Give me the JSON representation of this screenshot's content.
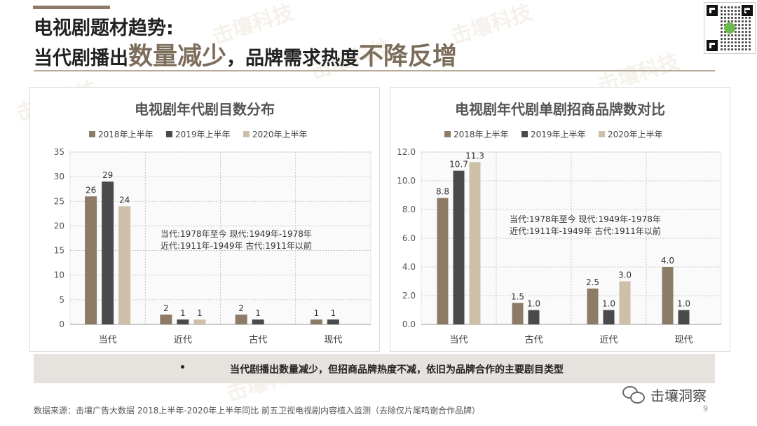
{
  "header": {
    "title_line1": "电视剧题材趋势:",
    "title_line2_a": "当代剧播出",
    "title_line2_hl1": "数量减少",
    "title_line2_b": "，品牌需求热度",
    "title_line2_hl2": "不降反增"
  },
  "watermark": {
    "text": "击壤科技"
  },
  "chart_data": [
    {
      "type": "bar",
      "title": "电视剧年代剧目数分布",
      "categories": [
        "当代",
        "近代",
        "古代",
        "现代"
      ],
      "series": [
        {
          "name": "2018年上半年",
          "values": [
            26,
            2,
            2,
            1
          ]
        },
        {
          "name": "2019年上半年",
          "values": [
            29,
            1,
            1,
            1
          ]
        },
        {
          "name": "2020年上半年",
          "values": [
            24,
            1,
            null,
            null
          ]
        }
      ],
      "ylim": [
        0,
        35
      ],
      "yticks": [
        "0",
        "5",
        "10",
        "15",
        "20",
        "25",
        "30",
        "35"
      ],
      "grid": true,
      "legend": "top",
      "annotation": [
        "当代:1978年至今      现代:1949年-1978年",
        "近代:1911年-1949年   古代:1911年以前"
      ]
    },
    {
      "type": "bar",
      "title": "电视剧年代剧单剧招商品牌数对比",
      "categories": [
        "当代",
        "古代",
        "近代",
        "现代"
      ],
      "series": [
        {
          "name": "2018年上半年",
          "values": [
            8.8,
            1.5,
            2.5,
            4.0
          ]
        },
        {
          "name": "2019年上半年",
          "values": [
            10.7,
            1.0,
            1.0,
            1.0
          ]
        },
        {
          "name": "2020年上半年",
          "values": [
            11.3,
            null,
            3.0,
            null
          ]
        }
      ],
      "ylim": [
        0,
        12
      ],
      "yticks": [
        "0.0",
        "2.0",
        "4.0",
        "6.0",
        "8.0",
        "10.0",
        "12.0"
      ],
      "decimals": 1,
      "grid": true,
      "legend": "top",
      "annotation": [
        "当代:1978年至今      现代:1949年-1978年",
        "近代:1911年-1949年   古代:1911年以前"
      ]
    }
  ],
  "colors": {
    "s2018": "#8c7b66",
    "s2019": "#4a4a4a",
    "s2020": "#cdbfa8",
    "grid": "#bbbbbb",
    "title": "#555555"
  },
  "summary": {
    "bullet": "•",
    "text": "当代剧播出数量减少，但招商品牌热度不减，依旧为品牌合作的主要剧目类型"
  },
  "footer": {
    "source": "数据来源：击壤广告大数据  2018上半年-2020年上半年同比 前五卫视电视剧内容植入监测（去除仅片尾鸣谢合作品牌）",
    "page": "9",
    "wechat_name": "击壤洞察"
  }
}
